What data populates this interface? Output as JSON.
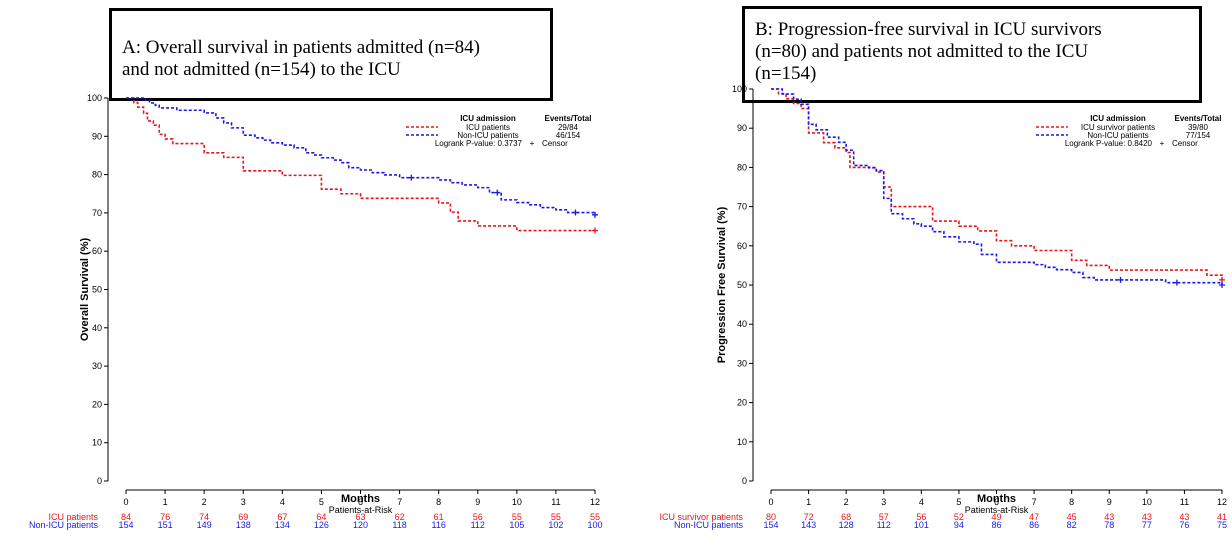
{
  "colors": {
    "red": "#e8151b",
    "blue": "#1a1ae6",
    "axis": "#000000"
  },
  "panels": [
    {
      "title_lines": [
        "A: Overall survival in patients admitted (n=84)",
        "and not admitted (n=154) to the ICU"
      ],
      "ylabel": "Overall Survival (%)",
      "xlabel": "Months",
      "risk_title": "Patients-at-Risk",
      "legend": {
        "header": "ICU admission",
        "events_header": "Events/Total",
        "entries": [
          {
            "label": "ICU patients",
            "value": "29/84"
          },
          {
            "label": "Non-ICU patients",
            "value": "46/154"
          }
        ],
        "footer": "Logrank P-value: 0.3737",
        "censor_label": "Censor"
      },
      "risk_table": [
        {
          "label": "ICU patients",
          "values": [
            "84",
            "76",
            "74",
            "69",
            "67",
            "64",
            "63",
            "62",
            "61",
            "56",
            "55",
            "55",
            "55"
          ]
        },
        {
          "label": "Non-ICU patients",
          "values": [
            "154",
            "151",
            "149",
            "138",
            "134",
            "126",
            "120",
            "118",
            "116",
            "112",
            "105",
            "102",
            "100"
          ]
        }
      ]
    },
    {
      "title_lines": [
        "B: Progression-free survival in ICU survivors",
        "(n=80) and patients not admitted to the ICU",
        "(n=154)"
      ],
      "ylabel": "Progression Free Survival (%)",
      "xlabel": "Months",
      "risk_title": "Patients-at-Risk",
      "legend": {
        "header": "ICU admission",
        "events_header": "Events/Total",
        "entries": [
          {
            "label": "ICU survivor patients",
            "value": "39/80"
          },
          {
            "label": "Non-ICU patients",
            "value": "77/154"
          }
        ],
        "footer": "Logrank P-value: 0.8420",
        "censor_label": "Censor"
      },
      "risk_table": [
        {
          "label": "ICU survivor patients",
          "values": [
            "80",
            "72",
            "68",
            "57",
            "56",
            "52",
            "49",
            "47",
            "45",
            "43",
            "43",
            "43",
            "41"
          ]
        },
        {
          "label": "Non-ICU patients",
          "values": [
            "154",
            "143",
            "128",
            "112",
            "101",
            "94",
            "86",
            "86",
            "82",
            "78",
            "77",
            "76",
            "75"
          ]
        }
      ]
    }
  ],
  "chart_data": [
    {
      "type": "line",
      "xlabel": "Months",
      "ylabel": "Overall Survival (%)",
      "xlim": [
        0,
        12
      ],
      "ylim": [
        0,
        100
      ],
      "xticks": [
        0,
        1,
        2,
        3,
        4,
        5,
        6,
        7,
        8,
        9,
        10,
        11,
        12
      ],
      "yticks": [
        0,
        10,
        20,
        30,
        40,
        50,
        60,
        70,
        80,
        90,
        100
      ],
      "step": true,
      "series": [
        {
          "name": "ICU patients",
          "color": "#e8151b",
          "x": [
            0,
            0.2,
            0.3,
            0.45,
            0.55,
            0.7,
            0.85,
            1.0,
            1.2,
            1.5,
            2.0,
            2.3,
            2.5,
            2.8,
            3.0,
            3.5,
            4.0,
            4.6,
            5.0,
            5.5,
            6.0,
            6.8,
            7.5,
            8.0,
            8.3,
            8.5,
            9.0,
            9.5,
            10.0,
            12.0
          ],
          "y": [
            100,
            98.8,
            97.6,
            96,
            94,
            92.9,
            90.5,
            89.3,
            88.1,
            88.1,
            85.7,
            85.7,
            84.5,
            84.5,
            81,
            81,
            79.8,
            79.8,
            76.2,
            75,
            73.8,
            73.8,
            73.8,
            72.6,
            70.2,
            67.9,
            66.6,
            66.6,
            65.4,
            65.4
          ],
          "censor_x": [
            12.0
          ]
        },
        {
          "name": "Non-ICU patients",
          "color": "#1a1ae6",
          "x": [
            0,
            0.5,
            0.6,
            0.75,
            0.85,
            1.0,
            1.3,
            1.5,
            2.0,
            2.3,
            2.5,
            2.7,
            3.0,
            3.3,
            3.5,
            3.7,
            4.0,
            4.3,
            4.6,
            4.8,
            5.0,
            5.3,
            5.5,
            5.7,
            6.0,
            6.3,
            6.6,
            7.0,
            8.0,
            8.3,
            8.6,
            9.0,
            9.3,
            9.6,
            10.0,
            10.3,
            10.6,
            11.0,
            11.3,
            12.0
          ],
          "y": [
            100,
            99.4,
            98.7,
            98.1,
            97.4,
            97.4,
            96.8,
            96.8,
            96.1,
            94.8,
            93.5,
            92.2,
            90.3,
            89.6,
            89,
            88.3,
            87.7,
            87,
            85.7,
            85.1,
            84.4,
            83.8,
            83.1,
            81.8,
            81.2,
            80.5,
            79.9,
            79.2,
            78.6,
            77.9,
            77.3,
            76.6,
            75.3,
            73.4,
            72.7,
            72.1,
            71.4,
            70.8,
            70.1,
            69.5
          ],
          "censor_x": [
            7.3,
            9.5,
            11.5,
            12.0
          ]
        }
      ]
    },
    {
      "type": "line",
      "xlabel": "Months",
      "ylabel": "Progression Free Survival (%)",
      "xlim": [
        0,
        12
      ],
      "ylim": [
        0,
        100
      ],
      "xticks": [
        0,
        1,
        2,
        3,
        4,
        5,
        6,
        7,
        8,
        9,
        10,
        11,
        12
      ],
      "yticks": [
        0,
        10,
        20,
        30,
        40,
        50,
        60,
        70,
        80,
        90,
        100
      ],
      "step": true,
      "series": [
        {
          "name": "ICU survivor patients",
          "color": "#e8151b",
          "x": [
            0,
            0.2,
            0.4,
            0.6,
            0.8,
            1.0,
            1.4,
            1.7,
            2.0,
            2.1,
            2.4,
            2.8,
            3.0,
            3.2,
            4.0,
            4.3,
            5.0,
            5.5,
            6.0,
            6.4,
            7.0,
            7.3,
            8.0,
            8.4,
            9.0,
            11.0,
            11.6,
            12.0
          ],
          "y": [
            100,
            98.8,
            97.5,
            96.3,
            95,
            88.8,
            86.3,
            85,
            83.8,
            80,
            80,
            78.8,
            75,
            70,
            70,
            66.3,
            65,
            63.8,
            61.3,
            60,
            58.8,
            58.8,
            56.3,
            55,
            53.8,
            53.8,
            52.5,
            51.3
          ],
          "censor_x": [
            12.0
          ]
        },
        {
          "name": "Non-ICU patients",
          "color": "#1a1ae6",
          "x": [
            0,
            0.3,
            0.6,
            0.8,
            1.0,
            1.2,
            1.5,
            1.8,
            2.0,
            2.2,
            2.6,
            2.8,
            3.0,
            3.2,
            3.5,
            3.8,
            4.0,
            4.3,
            4.6,
            5.0,
            5.4,
            5.6,
            6.0,
            6.3,
            7.0,
            7.3,
            7.6,
            8.0,
            8.3,
            8.6,
            9.0,
            10.0,
            10.5,
            11.0,
            11.6,
            12.0
          ],
          "y": [
            100,
            98.7,
            97.4,
            96.1,
            91,
            89.6,
            87.7,
            86.4,
            84.4,
            80.5,
            79.9,
            79.2,
            72.1,
            68.2,
            66.9,
            65.6,
            65,
            63.6,
            62.3,
            61,
            60.4,
            57.8,
            55.8,
            55.8,
            55.2,
            54.5,
            53.9,
            53.2,
            51.9,
            51.3,
            51.3,
            51.3,
            50.6,
            50.6,
            50.6,
            50
          ],
          "censor_x": [
            9.3,
            10.8,
            12.0
          ]
        }
      ]
    }
  ]
}
